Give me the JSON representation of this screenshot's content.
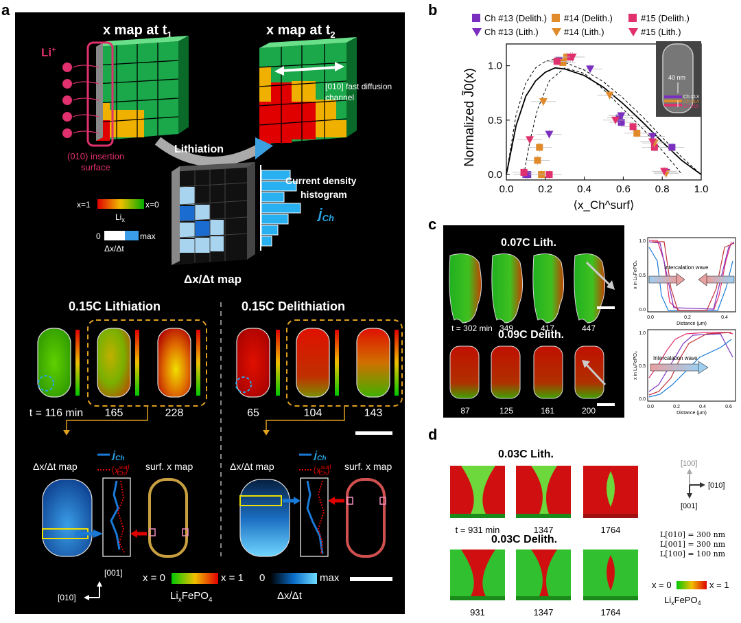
{
  "panels": {
    "a": {
      "label": "a",
      "title_t1": "x map at t",
      "title_t1_sub": "1",
      "title_t2": "x map at t",
      "title_t2_sub": "2",
      "li_ion": "Li",
      "li_ion_sup": "+",
      "insertion_surface_line1": "(010) insertion",
      "insertion_surface_line2": "surface",
      "fast_channel_line1": "[010] fast diffusion",
      "fast_channel_line2": "channel",
      "lithiation_arrow": "Lithiation",
      "current_hist_line1": "Current density",
      "current_hist_line2": "histogram",
      "jch": "j",
      "jch_sub": "Ch",
      "x_legend_left": "x=1",
      "x_legend_right": "x=0",
      "x_legend_label": "Li",
      "x_legend_label_sub": "x",
      "rate_legend_left": "0",
      "rate_legend_right": "max",
      "rate_legend_label": "Δx/Δt",
      "dxdt_map_title": "Δx/Δt map",
      "lith_title": "0.15C Lithiation",
      "delith_title": "0.15C Delithiation",
      "lith_times": [
        "t = 116 min",
        "165",
        "228"
      ],
      "delith_times": [
        "65",
        "104",
        "143"
      ],
      "lith_sub_labels": {
        "dxdt": "Δx/Δt map",
        "surf": "surf. x map"
      },
      "delith_sub_labels": {
        "dxdt": "Δx/Δt map",
        "surf": "surf. x map"
      },
      "legend_jch": "j",
      "legend_jch_sub": "Ch",
      "legend_xsurf": "⟨x",
      "legend_xsurf_sup": "surf",
      "legend_xsurf_sub": "Ch",
      "legend_xsurf_close": "⟩",
      "axis_001": "[001]",
      "axis_010": "[010]",
      "bottom_x_left": "x = 0",
      "bottom_x_right": "x = 1",
      "bottom_x_label": "Li",
      "bottom_x_label_sub": "x",
      "bottom_x_label_tail": "FePO",
      "bottom_x_label_sub2": "4",
      "bottom_rate_left": "0",
      "bottom_rate_right": "max",
      "bottom_rate_label": "Δx/Δt",
      "hist_bars": [
        0.7,
        0.85,
        0.55,
        0.95,
        0.65,
        0.4,
        0.25
      ]
    },
    "b": {
      "label": "b",
      "legend": [
        {
          "text": "Ch #13 (Delith.)",
          "color": "#7b2fbf",
          "marker": "square"
        },
        {
          "text": "#14 (Delith.)",
          "color": "#e08a2a",
          "marker": "square"
        },
        {
          "text": "#15 (Delith.)",
          "color": "#e0306e",
          "marker": "square"
        },
        {
          "text": "Ch #13 (Lith.)",
          "color": "#7b2fbf",
          "marker": "tri"
        },
        {
          "text": "#14 (Lith.)",
          "color": "#e08a2a",
          "marker": "tri"
        },
        {
          "text": "#15 (Lith.)",
          "color": "#e0306e",
          "marker": "tri"
        }
      ],
      "inset_scale": "40 nm",
      "inset_labels": [
        "Ch #13",
        "Ch #14",
        "Ch #15"
      ]
    },
    "c": {
      "label": "c",
      "lith_title": "0.07C Lith.",
      "delith_title": "0.09C Delith.",
      "lith_times": [
        "t = 302 min",
        "349",
        "417",
        "447"
      ],
      "delith_times": [
        "87",
        "125",
        "161",
        "200"
      ],
      "plot_xlabel": "Distance (μm)",
      "plot_ylabel": "x in LiₓFePO₄",
      "wave_label": "Intercalation wave",
      "top_plot_xticks": [
        "0.0",
        "0.2",
        "0.4"
      ],
      "bottom_plot_xticks": [
        "0.0",
        "0.2",
        "0.4",
        "0.6"
      ],
      "yticks": [
        "0.0",
        "0.5",
        "1.0"
      ]
    },
    "d": {
      "label": "d",
      "lith_title": "0.03C Lith.",
      "delith_title": "0.03C Delith.",
      "lith_times": [
        "t = 931 min",
        "1347",
        "1764"
      ],
      "delith_times": [
        "931",
        "1347",
        "1764"
      ],
      "axis_100": "[100]",
      "axis_010": "[010]",
      "axis_001": "[001]",
      "dims": [
        "L[010] = 300 nm",
        "L[001] = 300 nm",
        "L[100] = 100 nm"
      ],
      "x_left": "x = 0",
      "x_right": "x = 1",
      "x_label": "Li",
      "x_label_sub": "x",
      "x_label_tail": "FePO",
      "x_label_sub2": "4"
    }
  },
  "chart_data": {
    "type": "scatter",
    "title": "",
    "xlabel": "⟨x_Ch^surf⟩",
    "ylabel": "Normalized J̃0(x)",
    "xlim": [
      0.0,
      1.0
    ],
    "ylim": [
      -0.05,
      1.2
    ],
    "xticks": [
      "0.0",
      "0.2",
      "0.4",
      "0.6",
      "0.8",
      "1.0"
    ],
    "yticks": [
      "0.0",
      "0.5",
      "1.0"
    ],
    "series": [
      {
        "name": "Ch #13 (Delith.)",
        "marker": "square",
        "color": "#7b2fbf",
        "points": [
          [
            0.1,
            0.0
          ],
          [
            0.27,
            1.05
          ],
          [
            0.59,
            0.48
          ],
          [
            0.85,
            0.25
          ],
          [
            0.58,
            0.52
          ],
          [
            0.11,
            0.0
          ]
        ]
      },
      {
        "name": "#14 (Delith.)",
        "marker": "square",
        "color": "#e08a2a",
        "points": [
          [
            0.18,
            0.0
          ],
          [
            0.16,
            0.13
          ],
          [
            0.17,
            0.25
          ],
          [
            0.29,
            1.03
          ],
          [
            0.31,
            1.08
          ],
          [
            0.67,
            0.38
          ]
        ]
      },
      {
        "name": "#15 (Delith.)",
        "marker": "square",
        "color": "#e0306e",
        "points": [
          [
            0.09,
            0.02
          ],
          [
            0.22,
            0.0
          ],
          [
            0.26,
            1.04
          ],
          [
            0.33,
            1.08
          ],
          [
            0.65,
            0.44
          ],
          [
            0.76,
            0.25
          ]
        ]
      },
      {
        "name": "Ch #13 (Lith.)",
        "marker": "tri",
        "color": "#7b2fbf",
        "points": [
          [
            0.22,
            0.37
          ],
          [
            0.43,
            0.97
          ],
          [
            0.59,
            0.54
          ],
          [
            0.75,
            0.35
          ],
          [
            0.82,
            0.02
          ]
        ]
      },
      {
        "name": "#14 (Lith.)",
        "marker": "tri",
        "color": "#e08a2a",
        "points": [
          [
            0.19,
            0.67
          ],
          [
            0.53,
            0.73
          ],
          [
            0.76,
            0.29
          ],
          [
            0.82,
            0.01
          ]
        ]
      },
      {
        "name": "#15 (Lith.)",
        "marker": "tri",
        "color": "#e0306e",
        "points": [
          [
            0.12,
            0.32
          ],
          [
            0.34,
            1.08
          ],
          [
            0.56,
            0.5
          ],
          [
            0.75,
            0.3
          ],
          [
            0.81,
            0.03
          ]
        ]
      }
    ],
    "fits": [
      {
        "name": "fit",
        "style": "solid",
        "points": [
          [
            0.0,
            0.0
          ],
          [
            0.05,
            0.45
          ],
          [
            0.1,
            0.72
          ],
          [
            0.15,
            0.86
          ],
          [
            0.2,
            0.94
          ],
          [
            0.25,
            0.98
          ],
          [
            0.3,
            0.97
          ],
          [
            0.4,
            0.91
          ],
          [
            0.5,
            0.8
          ],
          [
            0.6,
            0.65
          ],
          [
            0.7,
            0.48
          ],
          [
            0.8,
            0.3
          ],
          [
            0.9,
            0.13
          ],
          [
            1.0,
            0.0
          ]
        ]
      },
      {
        "name": "upper bound",
        "style": "dashed",
        "points": [
          [
            0.0,
            0.0
          ],
          [
            0.05,
            0.55
          ],
          [
            0.1,
            0.84
          ],
          [
            0.15,
            0.98
          ],
          [
            0.2,
            1.04
          ],
          [
            0.25,
            1.06
          ],
          [
            0.3,
            1.03
          ],
          [
            0.4,
            0.96
          ],
          [
            0.5,
            0.85
          ],
          [
            0.6,
            0.7
          ],
          [
            0.7,
            0.53
          ],
          [
            0.8,
            0.34
          ],
          [
            0.9,
            0.16
          ],
          [
            1.0,
            0.0
          ]
        ]
      },
      {
        "name": "lower bound",
        "style": "dashed",
        "points": [
          [
            0.09,
            0.0
          ],
          [
            0.12,
            0.3
          ],
          [
            0.16,
            0.6
          ],
          [
            0.22,
            0.86
          ],
          [
            0.3,
            0.98
          ],
          [
            0.4,
            0.93
          ],
          [
            0.5,
            0.78
          ],
          [
            0.6,
            0.6
          ],
          [
            0.7,
            0.42
          ],
          [
            0.8,
            0.22
          ],
          [
            0.88,
            0.05
          ],
          [
            0.9,
            0.0
          ]
        ]
      }
    ]
  }
}
